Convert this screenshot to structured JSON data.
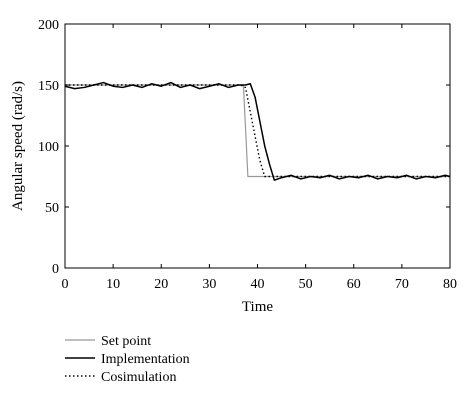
{
  "chart_data": {
    "type": "line",
    "xlabel": "Time",
    "ylabel": "Angular speed (rad/s)",
    "xlim": [
      0,
      80
    ],
    "ylim": [
      0,
      200
    ],
    "xticks": [
      0,
      10,
      20,
      30,
      40,
      50,
      60,
      70,
      80
    ],
    "yticks": [
      0,
      50,
      100,
      150,
      200
    ],
    "grid": false,
    "legend_position": "below",
    "series": [
      {
        "name": "Set point",
        "color": "#999999",
        "style": "solid",
        "x": [
          0,
          37.0,
          37.1,
          38.0,
          80
        ],
        "y": [
          150,
          150,
          148,
          75,
          75
        ]
      },
      {
        "name": "Implementation",
        "color": "#000000",
        "style": "solid",
        "x": [
          0,
          2,
          4,
          6,
          8,
          10,
          12,
          14,
          16,
          18,
          20,
          22,
          24,
          26,
          28,
          30,
          32,
          34,
          36,
          37.5,
          38.5,
          39.5,
          40.5,
          41.5,
          42.5,
          43.5,
          45,
          47,
          49,
          51,
          53,
          55,
          57,
          59,
          61,
          63,
          65,
          67,
          69,
          71,
          73,
          75,
          77,
          79,
          80
        ],
        "y": [
          149,
          147,
          148,
          150,
          152,
          149,
          148,
          150,
          148,
          151,
          149,
          152,
          148,
          150,
          147,
          149,
          151,
          148,
          150,
          150,
          151,
          140,
          120,
          100,
          85,
          72,
          74,
          76,
          73,
          75,
          74,
          76,
          73,
          75,
          74,
          76,
          73,
          75,
          74,
          76,
          73,
          75,
          74,
          76,
          75
        ]
      },
      {
        "name": "Cosimulation",
        "color": "#000000",
        "style": "dotted",
        "x": [
          0,
          36.5,
          37.5,
          38.5,
          39.5,
          40.5,
          41.5,
          80
        ],
        "y": [
          150,
          150,
          148,
          128,
          108,
          88,
          75,
          75
        ]
      }
    ]
  }
}
